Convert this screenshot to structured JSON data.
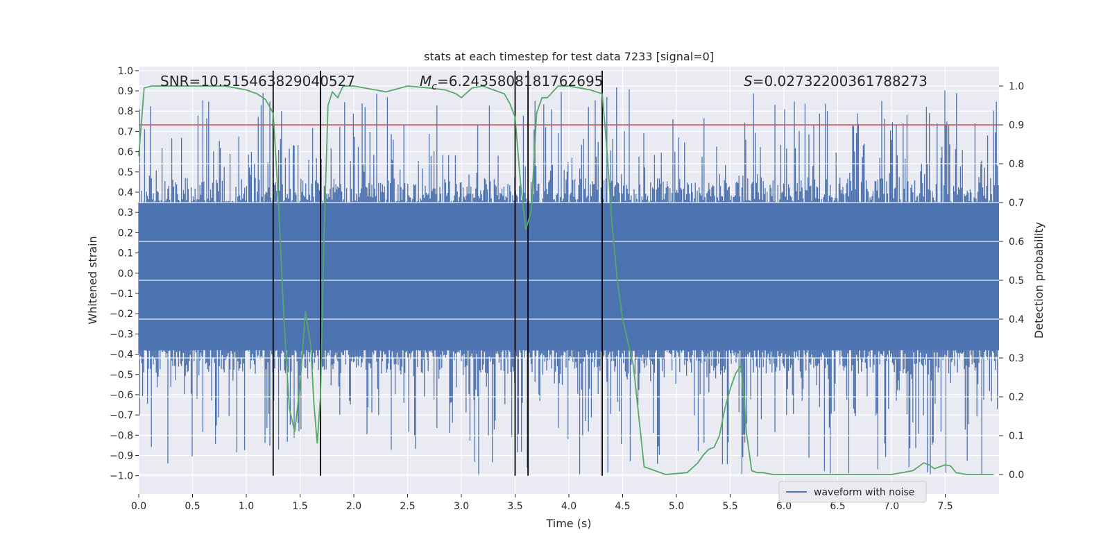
{
  "chart_data": {
    "type": "line",
    "title": "stats at each timestep for test data 7233 [signal=0]",
    "xlabel": "Time (s)",
    "ylabel_left": "Whitened strain",
    "ylabel_right": "Detection probability",
    "xlim": [
      0.0,
      8.0
    ],
    "ylim_left": [
      -1.09,
      1.02
    ],
    "ylim_right": [
      -0.05,
      1.05
    ],
    "x_ticks": [
      0.0,
      0.5,
      1.0,
      1.5,
      2.0,
      2.5,
      3.0,
      3.5,
      4.0,
      4.5,
      5.0,
      5.5,
      6.0,
      6.5,
      7.0,
      7.5
    ],
    "x_tick_labels": [
      "0.0",
      "0.5",
      "1.0",
      "1.5",
      "2.0",
      "2.5",
      "3.0",
      "3.5",
      "4.0",
      "4.5",
      "5.0",
      "5.5",
      "6.0",
      "6.5",
      "7.0",
      "7.5"
    ],
    "y_left_ticks": [
      1.0,
      0.9,
      0.8,
      0.7,
      0.6,
      0.5,
      0.4,
      0.3,
      0.2,
      0.1,
      0.0,
      -0.1,
      -0.2,
      -0.3,
      -0.4,
      -0.5,
      -0.6,
      -0.7,
      -0.8,
      -0.9,
      -1.0
    ],
    "y_left_tick_labels": [
      "1.0",
      "0.9",
      "0.8",
      "0.7",
      "0.6",
      "0.5",
      "0.4",
      "0.3",
      "0.2",
      "0.1",
      "0.0",
      "−0.1",
      "−0.2",
      "−0.3",
      "−0.4",
      "−0.5",
      "−0.6",
      "−0.7",
      "−0.8",
      "−0.9",
      "−1.0"
    ],
    "y_right_ticks": [
      1.0,
      0.9,
      0.8,
      0.7,
      0.6,
      0.5,
      0.4,
      0.3,
      0.2,
      0.1,
      0.0
    ],
    "y_right_tick_labels": [
      "1.0",
      "0.9",
      "0.8",
      "0.7",
      "0.6",
      "0.5",
      "0.4",
      "0.3",
      "0.2",
      "0.1",
      "0.0"
    ],
    "annotations": {
      "snr": "SNR=10.515463829040527",
      "mc_symbol": "M",
      "mc_sub": "c",
      "mc_value": "=6.2435808181762695",
      "s_symbol": "S",
      "s_value": "=0.02732200361788273"
    },
    "threshold": 0.9,
    "vertical_lines": [
      1.25,
      1.69,
      3.5,
      3.62,
      4.31
    ],
    "noise": {
      "name": "waveform with noise",
      "core_band": [
        -0.38,
        0.35
      ],
      "spike_max": [
        0.92,
        -1.0
      ],
      "seed": 7233
    },
    "detection_probability": {
      "x": [
        0.0,
        0.05,
        0.12,
        0.2,
        0.4,
        0.6,
        0.8,
        0.9,
        1.0,
        1.1,
        1.18,
        1.25,
        1.3,
        1.35,
        1.4,
        1.45,
        1.5,
        1.55,
        1.6,
        1.63,
        1.66,
        1.69,
        1.72,
        1.76,
        1.8,
        1.85,
        1.9,
        2.0,
        2.2,
        2.3,
        2.5,
        2.7,
        2.85,
        2.95,
        3.0,
        3.1,
        3.2,
        3.3,
        3.4,
        3.45,
        3.5,
        3.55,
        3.6,
        3.65,
        3.7,
        3.75,
        3.8,
        3.85,
        3.9,
        4.0,
        4.1,
        4.2,
        4.31,
        4.35,
        4.4,
        4.45,
        4.5,
        4.55,
        4.6,
        4.7,
        4.9,
        5.1,
        5.2,
        5.25,
        5.3,
        5.35,
        5.4,
        5.45,
        5.5,
        5.55,
        5.6,
        5.63,
        5.65,
        5.7,
        5.75,
        5.8,
        5.9,
        6.0,
        6.2,
        6.5,
        6.8,
        7.0,
        7.1,
        7.2,
        7.25,
        7.3,
        7.35,
        7.4,
        7.45,
        7.5,
        7.55,
        7.6,
        7.7,
        7.8,
        7.95
      ],
      "y": [
        0.82,
        0.995,
        1.0,
        1.0,
        1.0,
        1.0,
        1.0,
        0.995,
        0.99,
        0.98,
        0.965,
        0.93,
        0.7,
        0.4,
        0.17,
        0.11,
        0.23,
        0.42,
        0.33,
        0.18,
        0.08,
        0.2,
        0.58,
        0.95,
        0.985,
        0.97,
        1.0,
        1.0,
        0.99,
        0.985,
        1.0,
        0.995,
        0.99,
        0.98,
        0.97,
        0.995,
        1.0,
        0.99,
        0.98,
        0.955,
        0.92,
        0.75,
        0.63,
        0.68,
        0.93,
        0.97,
        0.97,
        0.985,
        1.0,
        1.0,
        0.995,
        0.99,
        0.98,
        0.85,
        0.65,
        0.5,
        0.4,
        0.34,
        0.28,
        0.02,
        0.0,
        0.005,
        0.03,
        0.05,
        0.065,
        0.07,
        0.1,
        0.17,
        0.22,
        0.26,
        0.28,
        0.2,
        0.11,
        0.01,
        0.005,
        0.005,
        0.0,
        0.0,
        0.0,
        0.0,
        0.0,
        0.0,
        0.005,
        0.01,
        0.02,
        0.03,
        0.025,
        0.015,
        0.02,
        0.025,
        0.022,
        0.005,
        0.0,
        0.0,
        0.0
      ]
    },
    "legend": {
      "label": "waveform with noise",
      "loc": "lower right"
    },
    "colors": {
      "noise": "#4c72b0",
      "probability": "#55a868",
      "threshold": "#c44e52",
      "vline": "#000000",
      "axes_bg": "#eaeaf2",
      "grid": "#ffffff"
    }
  }
}
